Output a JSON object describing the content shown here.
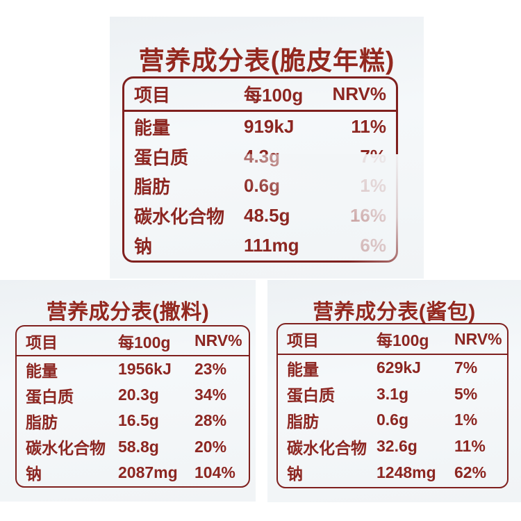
{
  "colors": {
    "text_maroon": "#8c2621",
    "border_maroon": "#7f201e",
    "panel_background": "#f2f5f7",
    "page_background": "#ffffff"
  },
  "tables": [
    {
      "title": "营养成分表(脆皮年糕)",
      "headers": {
        "item": "项目",
        "per": "每100g",
        "nrv": "NRV%"
      },
      "rows": [
        {
          "name": "能量",
          "value": "919kJ",
          "nrv": "11%"
        },
        {
          "name": "蛋白质",
          "value": "4.3g",
          "nrv": "7%"
        },
        {
          "name": "脂肪",
          "value": "0.6g",
          "nrv": "1%"
        },
        {
          "name": "碳水化合物",
          "value": "48.5g",
          "nrv": "16%"
        },
        {
          "name": "钠",
          "value": "111mg",
          "nrv": "6%"
        }
      ]
    },
    {
      "title": "营养成分表(撒料)",
      "headers": {
        "item": "项目",
        "per": "每100g",
        "nrv": "NRV%"
      },
      "rows": [
        {
          "name": "能量",
          "value": "1956kJ",
          "nrv": "23%"
        },
        {
          "name": "蛋白质",
          "value": "20.3g",
          "nrv": "34%"
        },
        {
          "name": "脂肪",
          "value": "16.5g",
          "nrv": "28%"
        },
        {
          "name": "碳水化合物",
          "value": "58.8g",
          "nrv": "20%"
        },
        {
          "name": "钠",
          "value": "2087mg",
          "nrv": "104%"
        }
      ]
    },
    {
      "title": "营养成分表(酱包)",
      "headers": {
        "item": "项目",
        "per": "每100g",
        "nrv": "NRV%"
      },
      "rows": [
        {
          "name": "能量",
          "value": "629kJ",
          "nrv": "7%"
        },
        {
          "name": "蛋白质",
          "value": "3.1g",
          "nrv": "5%"
        },
        {
          "name": "脂肪",
          "value": "0.6g",
          "nrv": "1%"
        },
        {
          "name": "碳水化合物",
          "value": "32.6g",
          "nrv": "11%"
        },
        {
          "name": "钠",
          "value": "1248mg",
          "nrv": "62%"
        }
      ]
    }
  ]
}
